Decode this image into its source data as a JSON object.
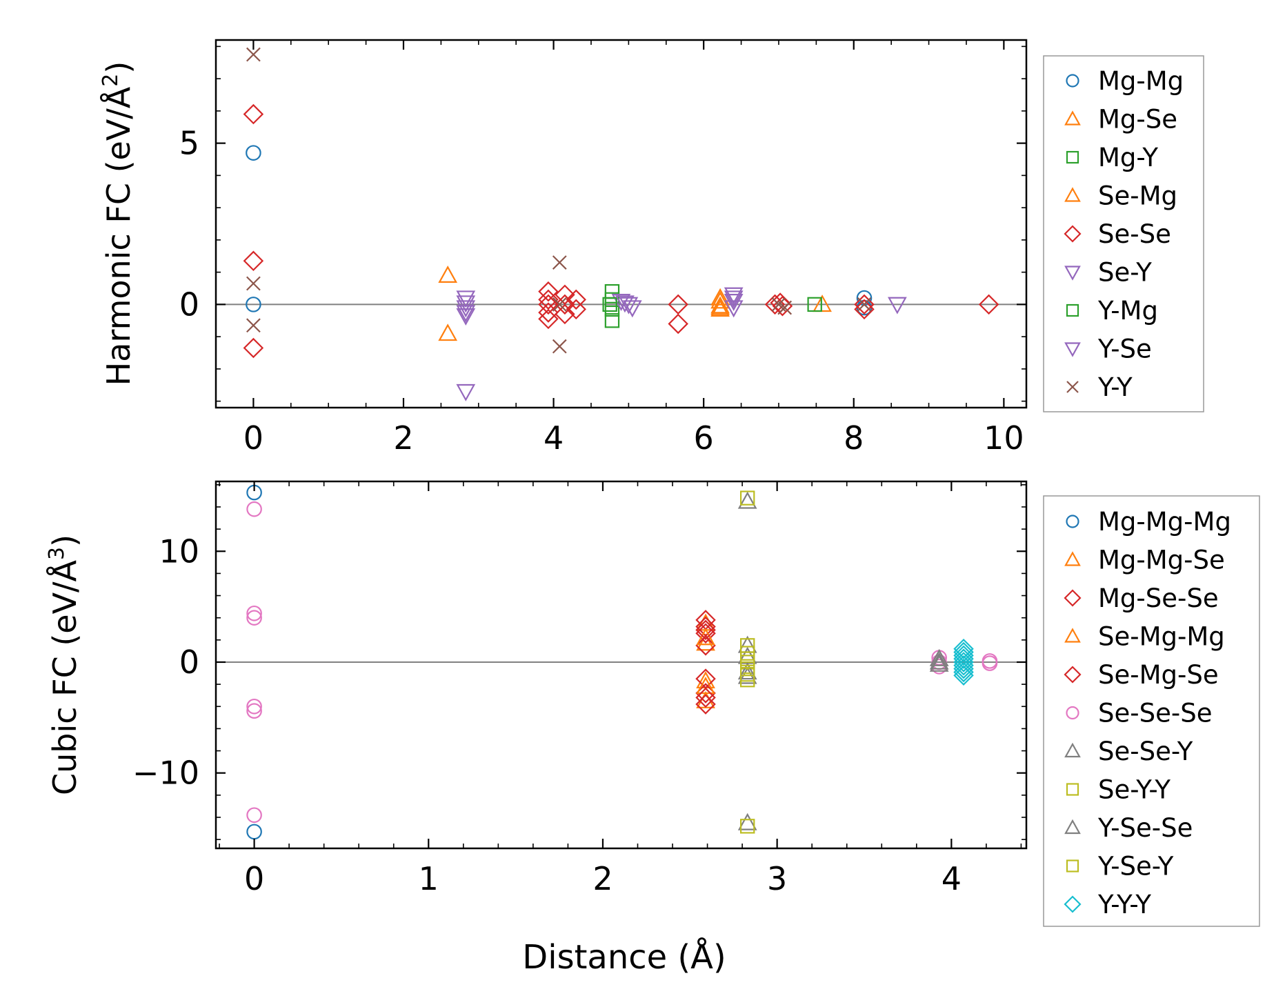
{
  "figure": {
    "xlabel": "Distance (Å)"
  },
  "chart_data": [
    {
      "type": "scatter",
      "id": "harmonic",
      "ylabel_main": "Harmonic FC (eV/Å",
      "ylabel_sup": "2",
      "ylabel_close": ")",
      "xlim": [
        -0.5,
        10.3
      ],
      "ylim": [
        -3.2,
        8.2
      ],
      "xticks": [
        0,
        2,
        4,
        6,
        8,
        10
      ],
      "yticks": [
        0,
        5
      ],
      "xtick_labels": [
        "0",
        "2",
        "4",
        "6",
        "8",
        "10"
      ],
      "ytick_labels": [
        "0",
        "5"
      ],
      "zero_line": 0,
      "series": [
        {
          "name": "Mg-Mg",
          "marker": "circle",
          "color": "#1f77b4",
          "x": [
            0,
            0,
            8.14,
            8.14
          ],
          "y": [
            4.7,
            0,
            0.2,
            -0.1
          ]
        },
        {
          "name": "Mg-Se",
          "marker": "triangle",
          "color": "#ff7f0e",
          "x": [
            2.59,
            2.59,
            6.22,
            6.22,
            6.22,
            7.58
          ],
          "y": [
            0.9,
            -0.9,
            0.1,
            -0.05,
            -0.15,
            0
          ]
        },
        {
          "name": "Mg-Y",
          "marker": "square",
          "color": "#2ca02c",
          "x": [
            4.78,
            4.78,
            4.78,
            4.78,
            7.48
          ],
          "y": [
            0.4,
            0.15,
            -0.15,
            -0.5,
            0
          ]
        },
        {
          "name": "Se-Mg",
          "marker": "triangle",
          "color": "#ff7f0e",
          "x": [
            6.22,
            6.22
          ],
          "y": [
            0.2,
            -0.1
          ]
        },
        {
          "name": "Se-Se",
          "marker": "diamond",
          "color": "#d62728",
          "x": [
            0,
            0,
            0,
            3.93,
            3.93,
            3.93,
            3.93,
            3.93,
            4.15,
            4.15,
            4.15,
            4.3,
            4.3,
            5.66,
            5.66,
            6.95,
            7.02,
            7.05,
            8.14,
            8.14,
            9.8
          ],
          "y": [
            5.9,
            1.35,
            -1.35,
            0.4,
            0.15,
            0,
            -0.25,
            -0.45,
            0.3,
            0,
            -0.3,
            0.15,
            -0.15,
            0,
            -0.6,
            0,
            0.05,
            -0.05,
            0,
            -0.15,
            0
          ]
        },
        {
          "name": "Se-Y",
          "marker": "triangle-down",
          "color": "#9467bd",
          "x": [
            2.83,
            2.83,
            2.83,
            2.83,
            2.83,
            4.9,
            5.0,
            5.05,
            6.4,
            6.4,
            6.4,
            8.58
          ],
          "y": [
            0.2,
            0.05,
            -0.1,
            -0.25,
            -2.7,
            0.1,
            0,
            -0.1,
            0.3,
            0.1,
            -0.1,
            0
          ]
        },
        {
          "name": "Y-Mg",
          "marker": "square",
          "color": "#2ca02c",
          "x": [
            4.75
          ],
          "y": [
            0
          ]
        },
        {
          "name": "Y-Se",
          "marker": "triangle-down",
          "color": "#9467bd",
          "x": [
            2.83,
            4.95,
            6.4
          ],
          "y": [
            -0.35,
            0.05,
            0.2
          ]
        },
        {
          "name": "Y-Y",
          "marker": "x",
          "color": "#8c564b",
          "x": [
            0,
            0,
            0,
            4.08,
            4.08,
            4.08,
            7.0,
            7.08,
            8.14
          ],
          "y": [
            7.75,
            0.65,
            -0.65,
            1.3,
            0,
            -1.3,
            0,
            -0.1,
            0
          ]
        }
      ]
    },
    {
      "type": "scatter",
      "id": "cubic",
      "ylabel_main": "Cubic FC (eV/Å",
      "ylabel_sup": "3",
      "ylabel_close": ")",
      "xlim": [
        -0.22,
        4.43
      ],
      "ylim": [
        -16.8,
        16.3
      ],
      "xticks": [
        0,
        1,
        2,
        3,
        4
      ],
      "yticks": [
        -10,
        0,
        10
      ],
      "xtick_labels": [
        "0",
        "1",
        "2",
        "3",
        "4"
      ],
      "ytick_labels": [
        "−10",
        "0",
        "10"
      ],
      "zero_line": 0,
      "series": [
        {
          "name": "Mg-Mg-Mg",
          "marker": "circle",
          "color": "#1f77b4",
          "x": [
            0,
            0
          ],
          "y": [
            15.3,
            -15.3
          ]
        },
        {
          "name": "Mg-Mg-Se",
          "marker": "triangle",
          "color": "#ff7f0e",
          "x": [
            2.59,
            2.59,
            2.59,
            2.59
          ],
          "y": [
            3.5,
            1.7,
            -1.7,
            -3.5
          ]
        },
        {
          "name": "Mg-Se-Se",
          "marker": "diamond",
          "color": "#d62728",
          "x": [
            2.59,
            2.59,
            2.59,
            2.59,
            2.59,
            2.59,
            2.59
          ],
          "y": [
            3.8,
            3.2,
            2.6,
            1.5,
            -1.5,
            -2.8,
            -3.8
          ]
        },
        {
          "name": "Se-Mg-Mg",
          "marker": "triangle",
          "color": "#ff7f0e",
          "x": [
            2.59,
            2.59
          ],
          "y": [
            2.2,
            -2.2
          ]
        },
        {
          "name": "Se-Mg-Se",
          "marker": "diamond",
          "color": "#d62728",
          "x": [
            2.59,
            2.59
          ],
          "y": [
            2.9,
            -3.2
          ]
        },
        {
          "name": "Se-Se-Se",
          "marker": "circle",
          "color": "#e377c2",
          "x": [
            0,
            0,
            0,
            0,
            0,
            0,
            3.93,
            3.93,
            3.93,
            4.22,
            4.22
          ],
          "y": [
            13.8,
            4.4,
            4.0,
            -4.0,
            -4.4,
            -13.8,
            0.4,
            0,
            -0.4,
            0.1,
            -0.1
          ]
        },
        {
          "name": "Se-Se-Y",
          "marker": "triangle",
          "color": "#7f7f7f",
          "x": [
            2.83,
            2.83,
            2.83,
            2.83,
            2.83,
            3.93,
            3.93
          ],
          "y": [
            14.5,
            1.5,
            0.5,
            -1.3,
            -14.5,
            0.3,
            -0.2
          ]
        },
        {
          "name": "Se-Y-Y",
          "marker": "square",
          "color": "#bcbd22",
          "x": [
            2.83,
            2.83,
            2.83,
            2.83,
            2.83,
            2.83,
            2.83
          ],
          "y": [
            14.8,
            1.5,
            0.8,
            0,
            -0.6,
            -1.6,
            -14.8
          ]
        },
        {
          "name": "Y-Se-Se",
          "marker": "triangle",
          "color": "#7f7f7f",
          "x": [
            2.83,
            3.93
          ],
          "y": [
            -0.9,
            0
          ]
        },
        {
          "name": "Y-Se-Y",
          "marker": "square",
          "color": "#bcbd22",
          "x": [
            2.83,
            2.83
          ],
          "y": [
            0.3,
            -1.1
          ]
        },
        {
          "name": "Y-Y-Y",
          "marker": "diamond",
          "color": "#17becf",
          "x": [
            4.07,
            4.07,
            4.07,
            4.07,
            4.07,
            4.07,
            4.07,
            4.07,
            4.07
          ],
          "y": [
            1.2,
            0.9,
            0.6,
            0.3,
            0,
            -0.3,
            -0.6,
            -0.9,
            -1.2
          ]
        }
      ]
    }
  ]
}
